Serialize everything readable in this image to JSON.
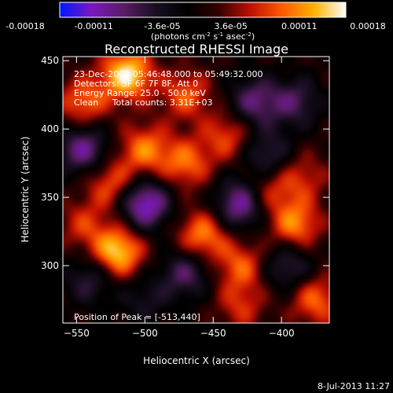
{
  "colorbar": {
    "ticks": [
      "-0.00018",
      "-0.00011",
      "-3.6e-05",
      "3.6e-05",
      "0.00011",
      "0.00018"
    ],
    "unit_label": "(photons cm",
    "unit_label_sup1": "-2",
    "unit_label_mid": " s",
    "unit_label_sup2": "-1",
    "unit_label_end": " asec",
    "unit_label_sup3": "-2",
    "unit_label_close": ")",
    "colors": [
      "#0018ff",
      "#7a18c0",
      "#5a1c66",
      "#1a0f22",
      "#000000",
      "#330000",
      "#c01000",
      "#ff5a00",
      "#ffb000",
      "#ffffff"
    ]
  },
  "chart_data": {
    "type": "heatmap",
    "title": "Reconstructed RHESSI Image",
    "xlabel": "Heliocentric X (arcsec)",
    "ylabel": "Heliocentric Y (arcsec)",
    "xlim": [
      -560,
      -365
    ],
    "ylim": [
      258,
      453
    ],
    "xticks": [
      -550,
      -500,
      -450,
      -400
    ],
    "yticks": [
      300,
      350,
      400,
      450
    ],
    "grid": false,
    "annotations": [
      "23-Dec-2003 05:46:48.000 to 05:49:32.000",
      "Detectors: 5F 6F 7F 8F, Att 0",
      "Energy Range: 25.0 - 50.0 keV",
      "Clean     Total counts: 3.31E+03"
    ],
    "peak_label": "Position of Peak = [-513,440]",
    "peak": [
      -513,
      440
    ],
    "sources": [
      {
        "x": -513,
        "y": 440,
        "v": 1.0
      },
      {
        "x": -520,
        "y": 310,
        "v": 0.95
      },
      {
        "x": -545,
        "y": 420,
        "v": 0.6
      },
      {
        "x": -470,
        "y": 425,
        "v": 0.55
      },
      {
        "x": -440,
        "y": 395,
        "v": 0.5
      },
      {
        "x": -500,
        "y": 385,
        "v": 0.65
      },
      {
        "x": -470,
        "y": 375,
        "v": 0.6
      },
      {
        "x": -525,
        "y": 360,
        "v": 0.55
      },
      {
        "x": -458,
        "y": 322,
        "v": 0.7
      },
      {
        "x": -430,
        "y": 300,
        "v": 0.55
      },
      {
        "x": -390,
        "y": 330,
        "v": 0.7
      },
      {
        "x": -375,
        "y": 275,
        "v": 0.6
      },
      {
        "x": -410,
        "y": 355,
        "v": 0.45
      },
      {
        "x": -545,
        "y": 330,
        "v": 0.4
      },
      {
        "x": -430,
        "y": 270,
        "v": 0.4
      },
      {
        "x": -385,
        "y": 365,
        "v": 0.4
      },
      {
        "x": -500,
        "y": 275,
        "v": -0.3
      },
      {
        "x": -500,
        "y": 345,
        "v": -0.9
      },
      {
        "x": -545,
        "y": 385,
        "v": -0.7
      },
      {
        "x": -420,
        "y": 420,
        "v": -0.6
      },
      {
        "x": -410,
        "y": 380,
        "v": -0.5
      },
      {
        "x": -430,
        "y": 345,
        "v": -0.8
      },
      {
        "x": -470,
        "y": 295,
        "v": -0.55
      },
      {
        "x": -395,
        "y": 300,
        "v": -0.5
      },
      {
        "x": -540,
        "y": 290,
        "v": -0.45
      },
      {
        "x": -390,
        "y": 420,
        "v": -0.5
      }
    ]
  },
  "footer": {
    "timestamp": "8-Jul-2013 11:27"
  }
}
